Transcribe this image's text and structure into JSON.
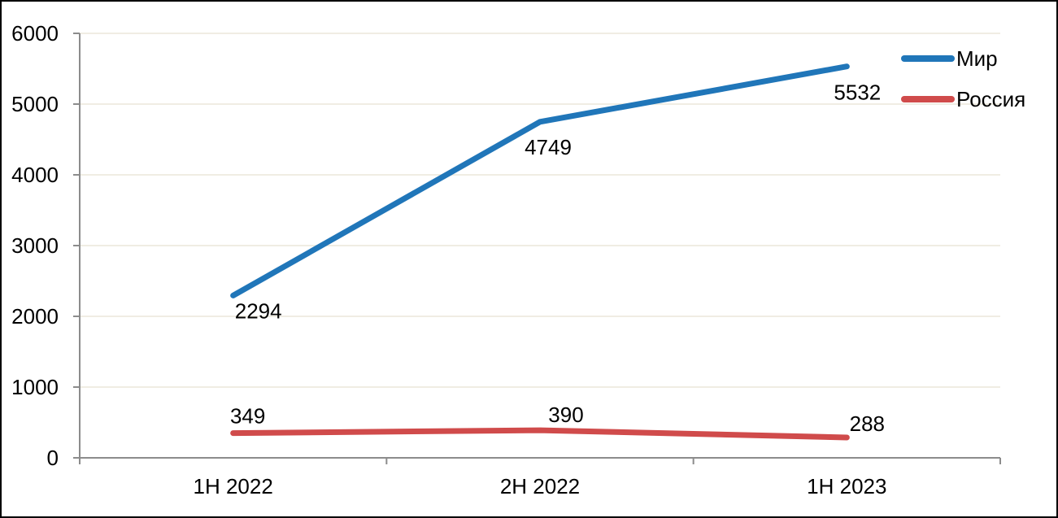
{
  "chart_data": {
    "type": "line",
    "title": "",
    "xlabel": "",
    "ylabel": "",
    "categories": [
      "1H 2022",
      "2H 2022",
      "1H 2023"
    ],
    "series": [
      {
        "name": "Мир",
        "values": [
          2294,
          4749,
          5532
        ],
        "color": "#2076B9",
        "data_labels": [
          "2294",
          "4749",
          "5532"
        ],
        "label_offsets": [
          [
            31,
            19
          ],
          [
            10,
            31
          ],
          [
            13,
            32
          ]
        ]
      },
      {
        "name": "Россия",
        "values": [
          349,
          390,
          288
        ],
        "color": "#D04B4B",
        "data_labels": [
          "349",
          "390",
          "288"
        ],
        "label_offsets": [
          [
            18,
            -21
          ],
          [
            32,
            -19
          ],
          [
            25,
            -17
          ]
        ]
      }
    ],
    "ylim": [
      0,
      6000
    ],
    "ytick_step": 1000,
    "ytick_labels": [
      "0",
      "1000",
      "2000",
      "3000",
      "4000",
      "5000",
      "6000"
    ],
    "grid": "horizontal",
    "legend_position": "top-right",
    "legend_entries": [
      "Мир",
      "Россия"
    ]
  },
  "style": {
    "background_color": "#FFFFFF",
    "border_color": "#000000",
    "grid_color": "#F0EDE3",
    "axis_color": "#8C8C8C",
    "text_color": "#000000",
    "series_colors": [
      "#2076B9",
      "#D04B4B"
    ]
  }
}
